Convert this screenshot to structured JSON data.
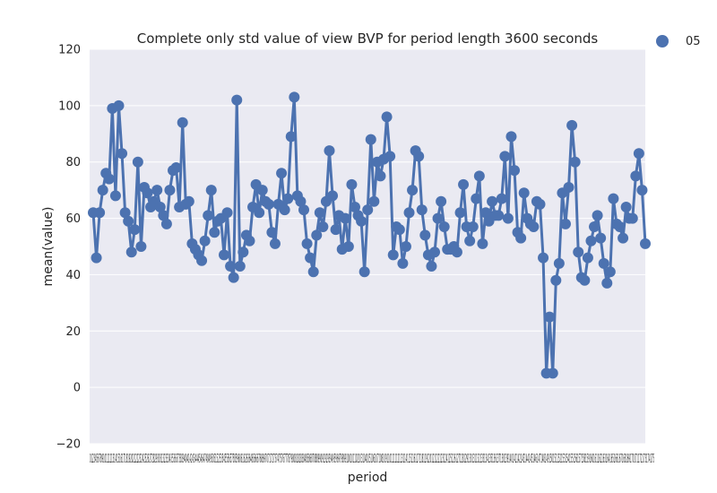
{
  "chart_data": {
    "type": "line",
    "title": "Complete only std value of view BVP for period length 3600 seconds",
    "xlabel": "period",
    "ylabel": "mean(value)",
    "ylim": [
      -20,
      120
    ],
    "yticks": [
      -20,
      0,
      20,
      40,
      60,
      80,
      100,
      120
    ],
    "grid": true,
    "legend": {
      "placement": "outside-top-right",
      "entries": [
        "05"
      ]
    },
    "colors": {
      "series": "#4c72b0",
      "plot_bg": "#eaeaf2",
      "grid": "#ffffff"
    },
    "xtick_labels": "0123456789101112131415161718192021222324252627282930313233343536373839404142434445464748495051525354555657585960616263646566676869707172737475767778798081828384858687888990919293949596979899100101102103104105106107108109110111112113114115116117118119120121122123124125126127128129130131132133134135136137138139140141142143144145146147148149150151152153154155156157158159160161162163164165166167168169170171172173174175",
    "series": [
      {
        "name": "05",
        "values": [
          62,
          46,
          62,
          70,
          76,
          74,
          99,
          68,
          100,
          83,
          62,
          59,
          48,
          56,
          80,
          50,
          71,
          69,
          64,
          66,
          70,
          64,
          61,
          58,
          70,
          77,
          78,
          64,
          94,
          65,
          66,
          51,
          49,
          47,
          45,
          52,
          61,
          70,
          55,
          59,
          60,
          47,
          62,
          43,
          39,
          102,
          43,
          48,
          54,
          52,
          64,
          72,
          62,
          70,
          66,
          65,
          55,
          51,
          65,
          76,
          63,
          67,
          89,
          103,
          68,
          66,
          63,
          51,
          46,
          41,
          54,
          62,
          57,
          66,
          84,
          68,
          56,
          61,
          49,
          60,
          50,
          72,
          64,
          61,
          59,
          41,
          63,
          88,
          66,
          80,
          75,
          81,
          96,
          82,
          47,
          57,
          56,
          44,
          50,
          62,
          70,
          84,
          82,
          63,
          54,
          47,
          43,
          48,
          60,
          66,
          57,
          49,
          49,
          50,
          48,
          62,
          72,
          57,
          52,
          57,
          67,
          75,
          51,
          62,
          59,
          66,
          61,
          61,
          67,
          82,
          60,
          89,
          77,
          55,
          53,
          69,
          60,
          58,
          57,
          66,
          65,
          46,
          5,
          25,
          5,
          38,
          44,
          69,
          58,
          71,
          93,
          80,
          48,
          39,
          38,
          46,
          52,
          57,
          61,
          53,
          44,
          37,
          41,
          67,
          58,
          57,
          53,
          64,
          60,
          60,
          75,
          83,
          70,
          51
        ]
      }
    ]
  }
}
